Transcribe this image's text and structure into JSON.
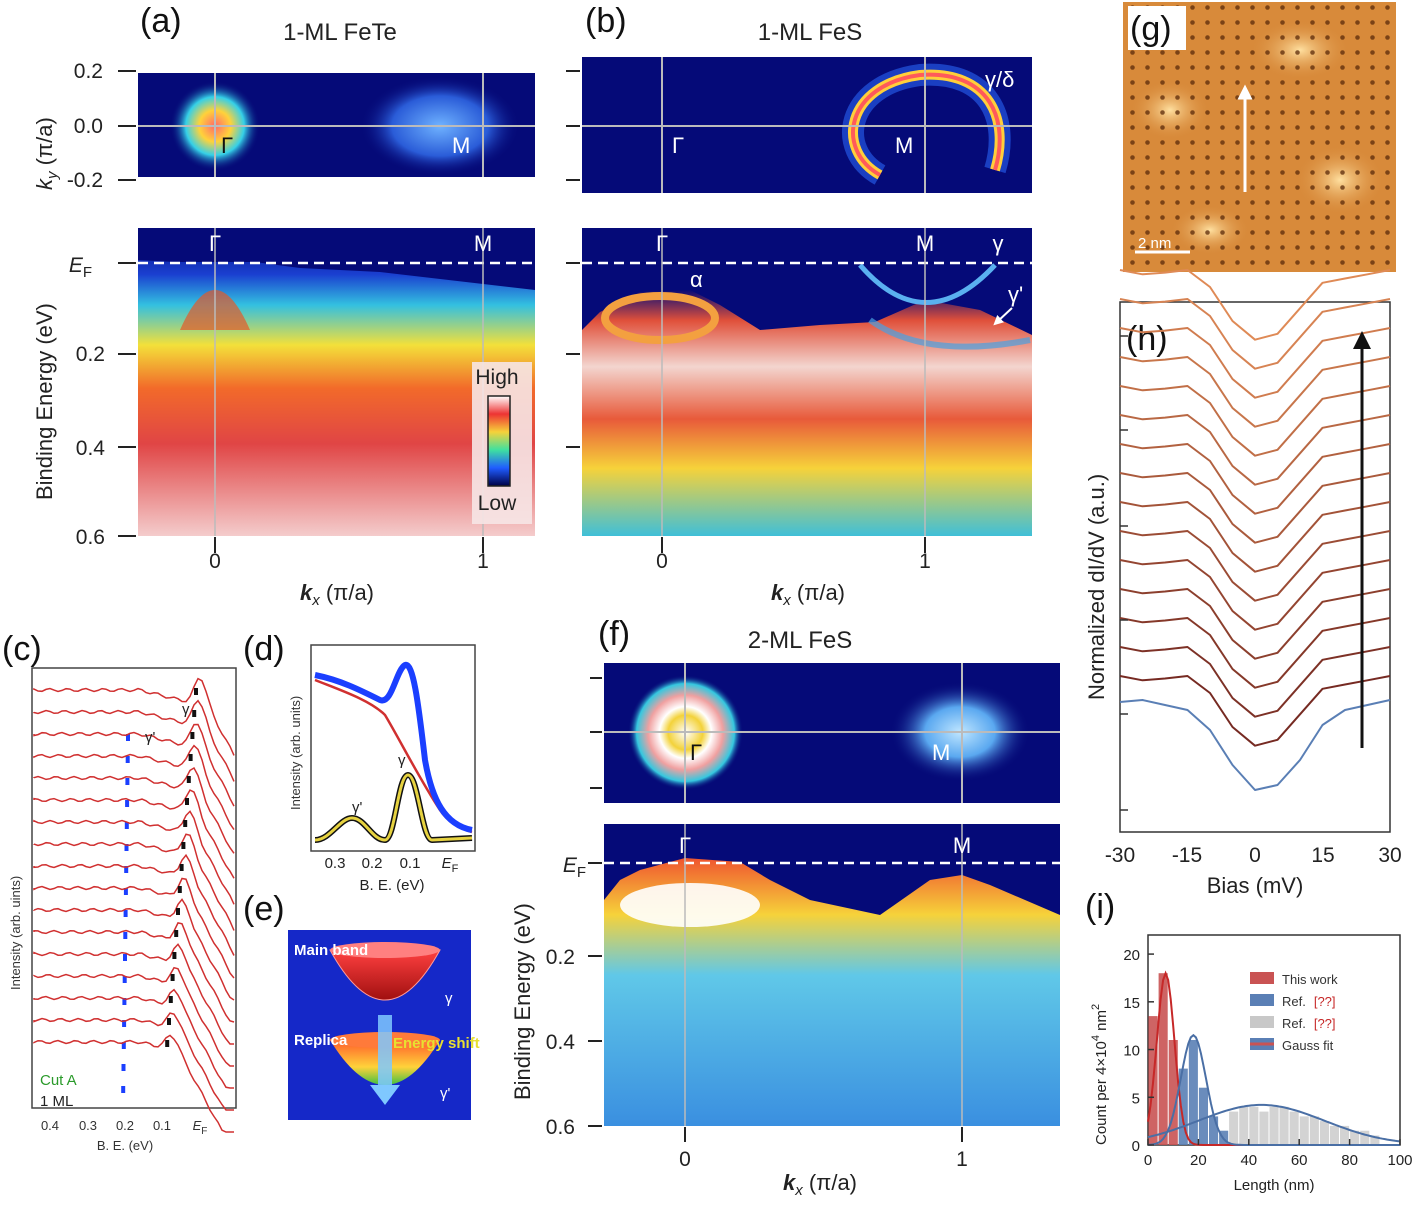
{
  "figure": {
    "panels": {
      "a": {
        "letter": "(a)",
        "title": "1-ML FeTe",
        "ky_label": "k",
        "ky_sub": "y",
        "ky_unit": " (π/a)",
        "ky_ticks": [
          "0.2",
          "0.0",
          "-0.2"
        ],
        "map_gamma": "Γ",
        "map_m": "M",
        "cut_gamma": "Γ",
        "cut_m": "M",
        "ef": "E",
        "ef_sub": "F",
        "be_label": "Binding Energy (eV)",
        "be_ticks": [
          "0.2",
          "0.4",
          "0.6"
        ],
        "kx_ticks": [
          "0",
          "1"
        ],
        "kx_label": "k",
        "kx_sub": "x",
        "kx_unit": " (π/a)",
        "colorbar_high": "High",
        "colorbar_low": "Low"
      },
      "b": {
        "letter": "(b)",
        "title": "1-ML FeS",
        "map_gamma": "Γ",
        "map_m": "M",
        "map_gd": "γ/δ",
        "cut_gamma": "Γ",
        "cut_m": "M",
        "cut_g": "γ",
        "alpha": "α",
        "gprime": "γ'",
        "kx_ticks": [
          "0",
          "1"
        ],
        "kx_label": "k",
        "kx_sub": "x",
        "kx_unit": " (π/a)"
      },
      "c": {
        "letter": "(c)",
        "ylabel": "Intensity (arb. uints)",
        "gprime": "γ'",
        "g": "γ",
        "cut": "Cut A",
        "ml": "1 ML",
        "ticks": [
          "0.4",
          "0.3",
          "0.2",
          "0.1"
        ],
        "ef": "E",
        "ef_sub": "F",
        "xlabel": "B. E. (eV)"
      },
      "d": {
        "letter": "(d)",
        "ylabel": "Intensity (arb. units)",
        "g": "γ",
        "gprime": "γ'",
        "ticks": [
          "0.3",
          "0.2",
          "0.1"
        ],
        "ef": "E",
        "ef_sub": "F",
        "xlabel": "B. E. (eV)"
      },
      "e": {
        "letter": "(e)",
        "main_band": "Main band",
        "replica": "Replica",
        "energy_shift": "Energy shift",
        "g": "γ",
        "gprime": "γ'"
      },
      "f": {
        "letter": "(f)",
        "title": "2-ML FeS",
        "map_gamma": "Γ",
        "map_m": "M",
        "cut_gamma": "Γ",
        "cut_m": "M",
        "ef": "E",
        "ef_sub": "F",
        "be_label": "Binding Energy (eV)",
        "be_ticks": [
          "0.2",
          "0.4",
          "0.6"
        ],
        "kx_ticks": [
          "0",
          "1"
        ],
        "kx_label": "k",
        "kx_sub": "x",
        "kx_unit": " (π/a)"
      },
      "g": {
        "letter": "(g)",
        "scale": "2 nm"
      },
      "h": {
        "letter": "(h)",
        "ylabel": "Normalized dI/dV (a.u.)",
        "xlabel": "Bias (mV)",
        "xticks": [
          "-30",
          "-15",
          "0",
          "15",
          "30"
        ]
      },
      "i": {
        "letter": "(i)",
        "ylabel_a": "Count per 4×10",
        "ylabel_sup1": "4",
        "ylabel_b": " nm",
        "ylabel_sup2": "2",
        "xlabel": "Length (nm)",
        "legend": [
          "This work",
          "Ref.",
          "Ref.",
          "Gauss fit"
        ],
        "ref_tag": "[??]",
        "yticks": [
          "0",
          "5",
          "10",
          "15",
          "20"
        ],
        "xticks": [
          "0",
          "20",
          "40",
          "60",
          "80",
          "100"
        ]
      }
    },
    "colors": {
      "map_bg": "#050a78",
      "curve_red": "#d03030",
      "accent_red": "#c62828",
      "blue_marker": "#1b3fff",
      "histo_red": "#c95353",
      "histo_blue": "#5a7fb5",
      "histo_gray": "#c8c8c8",
      "stm_orange": "#d88a3a"
    }
  },
  "chart_data": [
    {
      "type": "line",
      "title": "(h)",
      "xlabel": "Bias (mV)",
      "ylabel": "Normalized dI/dV (a.u.)",
      "xlim": [
        -30,
        30
      ],
      "x": [
        -30,
        -25,
        -20,
        -15,
        -10,
        -5,
        0,
        5,
        10,
        15,
        20,
        25,
        30
      ],
      "series_count": 16,
      "template_profile": [
        1.0,
        0.95,
        0.97,
        1.0,
        0.8,
        0.4,
        0.18,
        0.25,
        0.55,
        0.85,
        0.9,
        0.95,
        1.0
      ],
      "bottom_trace": [
        0.88,
        0.9,
        0.85,
        0.8,
        0.6,
        0.25,
        0.0,
        0.05,
        0.3,
        0.65,
        0.8,
        0.85,
        0.9
      ],
      "note": "Stack of spectra offset vertically; bottom trace blue, upper traces red to orange."
    },
    {
      "type": "bar",
      "title": "(i)",
      "xlabel": "Length (nm)",
      "ylabel": "Count per 4×10^4 nm^2",
      "xlim": [
        0,
        100
      ],
      "ylim": [
        0,
        22
      ],
      "series": [
        {
          "name": "This work",
          "x": [
            2,
            6,
            10
          ],
          "values": [
            13.5,
            18,
            11
          ]
        },
        {
          "name": "Ref. [??]",
          "x": [
            14,
            18,
            22,
            26,
            30
          ],
          "values": [
            8,
            11,
            6,
            3,
            1.5
          ]
        },
        {
          "name": "Ref. [??]",
          "x": [
            34,
            38,
            42,
            46,
            50,
            54,
            58,
            62,
            66,
            70,
            74,
            78,
            82,
            86,
            90
          ],
          "values": [
            3.5,
            4,
            4,
            3.5,
            4,
            4,
            3.5,
            3,
            3,
            2.5,
            2,
            2,
            1.5,
            1.5,
            1
          ]
        }
      ],
      "gauss_fits": [
        {
          "name": "This work",
          "mu": 7,
          "sigma": 3.5,
          "amp": 18
        },
        {
          "name": "Ref. [??]",
          "mu": 18,
          "sigma": 5,
          "amp": 11.5
        },
        {
          "name": "Ref. [??]",
          "mu": 45,
          "sigma": 25,
          "amp": 4.2
        }
      ]
    }
  ]
}
